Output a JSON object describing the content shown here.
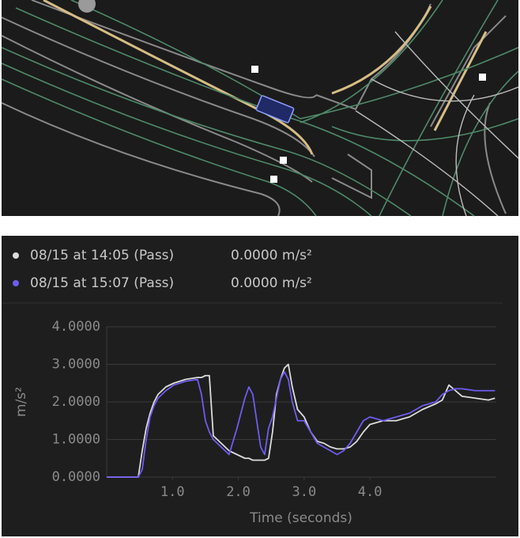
{
  "chart_data": {
    "type": "line",
    "y_label": "m/s²",
    "x_label": "Time (seconds)",
    "x": [
      0,
      0.48,
      0.54,
      0.6,
      0.66,
      0.72,
      0.78,
      0.9,
      1.02,
      1.2,
      1.38,
      1.44,
      1.5,
      1.56,
      1.62,
      1.74,
      1.86,
      1.98,
      2.1,
      2.16,
      2.22,
      2.28,
      2.34,
      2.4,
      2.46,
      2.52,
      2.58,
      2.64,
      2.7,
      2.76,
      2.82,
      2.9,
      3.0,
      3.1,
      3.2,
      3.3,
      3.4,
      3.5,
      3.6,
      3.7,
      3.8,
      3.9,
      4.0,
      4.2,
      4.4,
      4.6,
      4.8,
      5.0,
      5.1,
      5.2,
      5.3,
      5.4,
      5.6,
      5.8,
      5.9
    ],
    "series": [
      {
        "name": "08/15 at 14:05 (Pass)",
        "readout": "0.0000 m/s²",
        "color": "#dcdcdc",
        "values": [
          0,
          0,
          0.7,
          1.3,
          1.7,
          2.0,
          2.2,
          2.4,
          2.5,
          2.6,
          2.65,
          2.65,
          2.7,
          2.7,
          1.1,
          0.9,
          0.7,
          0.6,
          0.5,
          0.5,
          0.45,
          0.45,
          0.45,
          0.45,
          0.5,
          1.2,
          2.2,
          2.6,
          2.9,
          3.0,
          2.4,
          1.8,
          1.6,
          1.2,
          0.95,
          0.9,
          0.8,
          0.75,
          0.75,
          0.8,
          0.95,
          1.2,
          1.4,
          1.5,
          1.5,
          1.6,
          1.8,
          1.95,
          2.05,
          2.45,
          2.3,
          2.15,
          2.1,
          2.05,
          2.1
        ]
      },
      {
        "name": "08/15 at 15:07 (Pass)",
        "readout": "0.0000 m/s²",
        "color": "#6e5cf0",
        "values": [
          0,
          0,
          0.2,
          1.0,
          1.6,
          1.9,
          2.1,
          2.3,
          2.45,
          2.55,
          2.6,
          2.2,
          1.5,
          1.2,
          1.0,
          0.8,
          0.6,
          1.3,
          2.1,
          2.4,
          2.2,
          1.5,
          0.8,
          0.6,
          1.3,
          1.6,
          2.1,
          2.6,
          2.8,
          2.6,
          2.0,
          1.5,
          1.5,
          1.2,
          0.9,
          0.8,
          0.7,
          0.6,
          0.7,
          0.9,
          1.2,
          1.5,
          1.6,
          1.5,
          1.6,
          1.7,
          1.9,
          2.0,
          2.2,
          2.3,
          2.35,
          2.35,
          2.3,
          2.3,
          2.3
        ]
      }
    ],
    "xlim": [
      0,
      5.92
    ],
    "ylim": [
      0,
      4
    ],
    "xticks": [
      {
        "value": 1,
        "label": "1.0"
      },
      {
        "value": 2,
        "label": "2.0"
      },
      {
        "value": 3,
        "label": "3.0"
      },
      {
        "value": 4,
        "label": "4.0"
      }
    ],
    "yticks": [
      {
        "value": 0,
        "label": "0.0000"
      },
      {
        "value": 1,
        "label": "1.0000"
      },
      {
        "value": 2,
        "label": "2.0000"
      },
      {
        "value": 3,
        "label": "3.0000"
      },
      {
        "value": 4,
        "label": "4.0000"
      }
    ],
    "grid": true
  }
}
